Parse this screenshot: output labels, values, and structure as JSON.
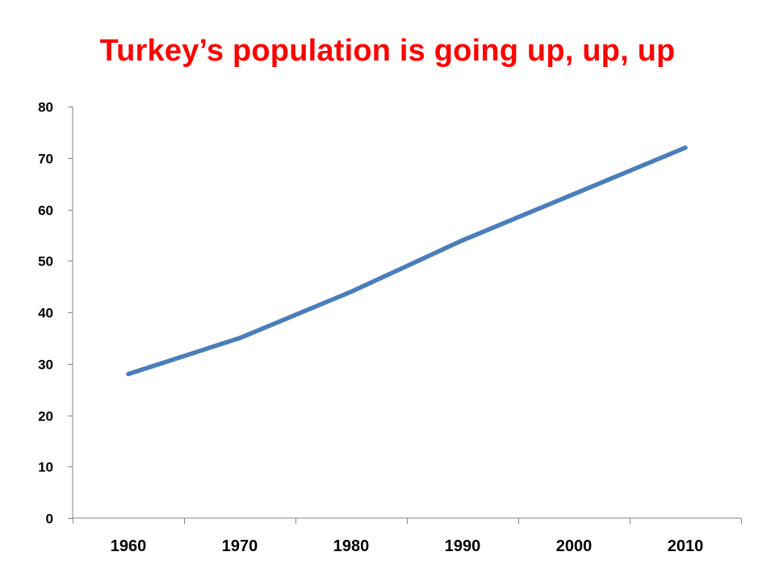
{
  "chart_data": {
    "type": "line",
    "title": "Turkey’s population is going up, up, up",
    "xlabel": "",
    "ylabel": "",
    "categories": [
      "1960",
      "1970",
      "1980",
      "1990",
      "2000",
      "2010"
    ],
    "series": [
      {
        "values": [
          28,
          35,
          44,
          54,
          63,
          72
        ],
        "color": "#4a7ebb"
      }
    ],
    "ylim": [
      0,
      80
    ],
    "yticks": [
      0,
      10,
      20,
      30,
      40,
      50,
      60,
      70,
      80
    ],
    "grid": false,
    "legend": "none"
  },
  "colors": {
    "title": "#ff0000",
    "axis": "#868686",
    "text": "#000000"
  }
}
